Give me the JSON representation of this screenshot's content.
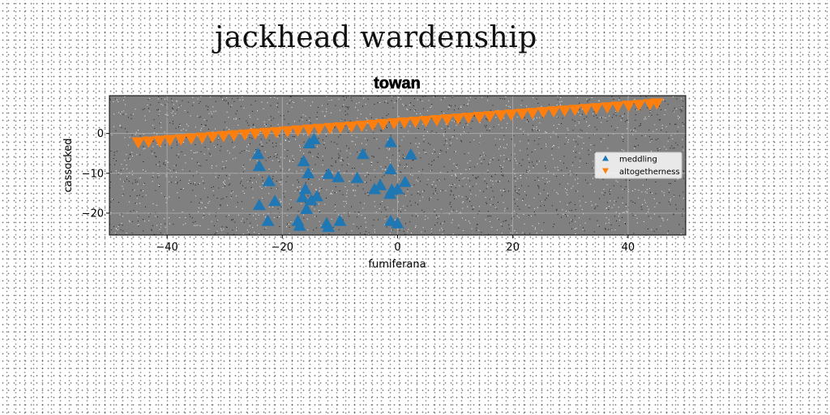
{
  "suptitle": "jackhead wardenship",
  "chart_data": {
    "type": "scatter",
    "title": "towan",
    "xlabel": "fumiferana",
    "ylabel": "cassocked",
    "xlim": [
      -50,
      50
    ],
    "ylim": [
      -25.5,
      9.5
    ],
    "xticks": [
      -40,
      -20,
      0,
      20,
      40
    ],
    "xtick_labels": [
      "−40",
      "−20",
      "0",
      "20",
      "40"
    ],
    "yticks": [
      0,
      -10,
      -20
    ],
    "ytick_labels": [
      "0",
      "−10",
      "−20"
    ],
    "grid": true,
    "legend_position": "center-right",
    "series": [
      {
        "name": "meddling",
        "marker": "triangle-up",
        "color": "#1f77b4",
        "points": [
          [
            -24.2,
            -5.2
          ],
          [
            -24.0,
            -8.2
          ],
          [
            -22.3,
            -12.0
          ],
          [
            -24.0,
            -18.0
          ],
          [
            -21.3,
            -17.0
          ],
          [
            -22.5,
            -22.0
          ],
          [
            -17.3,
            -22.0
          ],
          [
            -17.0,
            -23.2
          ],
          [
            -16.3,
            -7.0
          ],
          [
            -15.3,
            -2.5
          ],
          [
            -14.5,
            -1.5
          ],
          [
            -15.5,
            -10.0
          ],
          [
            -16.0,
            -14.0
          ],
          [
            -16.5,
            -16.0
          ],
          [
            -15.0,
            -16.8
          ],
          [
            -14.0,
            -15.8
          ],
          [
            -15.8,
            -19.0
          ],
          [
            -12.0,
            -10.2
          ],
          [
            -10.3,
            -11.0
          ],
          [
            -12.3,
            -22.6
          ],
          [
            -12.0,
            -23.5
          ],
          [
            -10.0,
            -22.0
          ],
          [
            -7.0,
            -11.2
          ],
          [
            -6.0,
            -5.2
          ],
          [
            -4.0,
            -14.0
          ],
          [
            -3.0,
            -13.0
          ],
          [
            -1.2,
            -2.2
          ],
          [
            -1.2,
            -9.0
          ],
          [
            -1.0,
            -14.2
          ],
          [
            -1.3,
            -15.2
          ],
          [
            0.0,
            -14.0
          ],
          [
            1.3,
            -12.2
          ],
          [
            2.3,
            -5.3
          ],
          [
            -1.2,
            -22.0
          ],
          [
            0.0,
            -22.6
          ]
        ]
      },
      {
        "name": "altogetherness",
        "marker": "triangle-down",
        "color": "#ff7f0e",
        "points": [
          [
            -45.0,
            -2.2
          ],
          [
            -43.2,
            -2.0
          ],
          [
            -41.3,
            -1.8
          ],
          [
            -39.5,
            -1.6
          ],
          [
            -37.6,
            -1.4
          ],
          [
            -35.8,
            -1.2
          ],
          [
            -33.9,
            -1.0
          ],
          [
            -32.1,
            -0.8
          ],
          [
            -30.2,
            -0.6
          ],
          [
            -28.4,
            -0.4
          ],
          [
            -26.5,
            -0.2
          ],
          [
            -24.7,
            0.0
          ],
          [
            -22.8,
            0.2
          ],
          [
            -21.0,
            0.4
          ],
          [
            -19.1,
            0.6
          ],
          [
            -17.3,
            0.8
          ],
          [
            -15.4,
            1.0
          ],
          [
            -13.6,
            1.2
          ],
          [
            -11.7,
            1.4
          ],
          [
            -9.9,
            1.6
          ],
          [
            -8.0,
            1.8
          ],
          [
            -6.2,
            2.0
          ],
          [
            -4.3,
            2.2
          ],
          [
            -2.5,
            2.4
          ],
          [
            -0.6,
            2.6
          ],
          [
            1.2,
            2.8
          ],
          [
            3.1,
            3.0
          ],
          [
            4.9,
            3.2
          ],
          [
            6.8,
            3.4
          ],
          [
            8.6,
            3.6
          ],
          [
            10.5,
            3.8
          ],
          [
            12.3,
            4.0
          ],
          [
            14.2,
            4.2
          ],
          [
            16.0,
            4.4
          ],
          [
            17.9,
            4.6
          ],
          [
            19.7,
            4.8
          ],
          [
            21.6,
            5.0
          ],
          [
            23.4,
            5.2
          ],
          [
            25.3,
            5.4
          ],
          [
            27.1,
            5.6
          ],
          [
            29.0,
            5.8
          ],
          [
            30.8,
            6.0
          ],
          [
            32.7,
            6.2
          ],
          [
            34.5,
            6.4
          ],
          [
            36.4,
            6.6
          ],
          [
            38.2,
            6.8
          ],
          [
            40.1,
            7.0
          ],
          [
            41.9,
            7.2
          ],
          [
            43.8,
            7.4
          ],
          [
            45.0,
            7.6
          ]
        ]
      }
    ]
  }
}
